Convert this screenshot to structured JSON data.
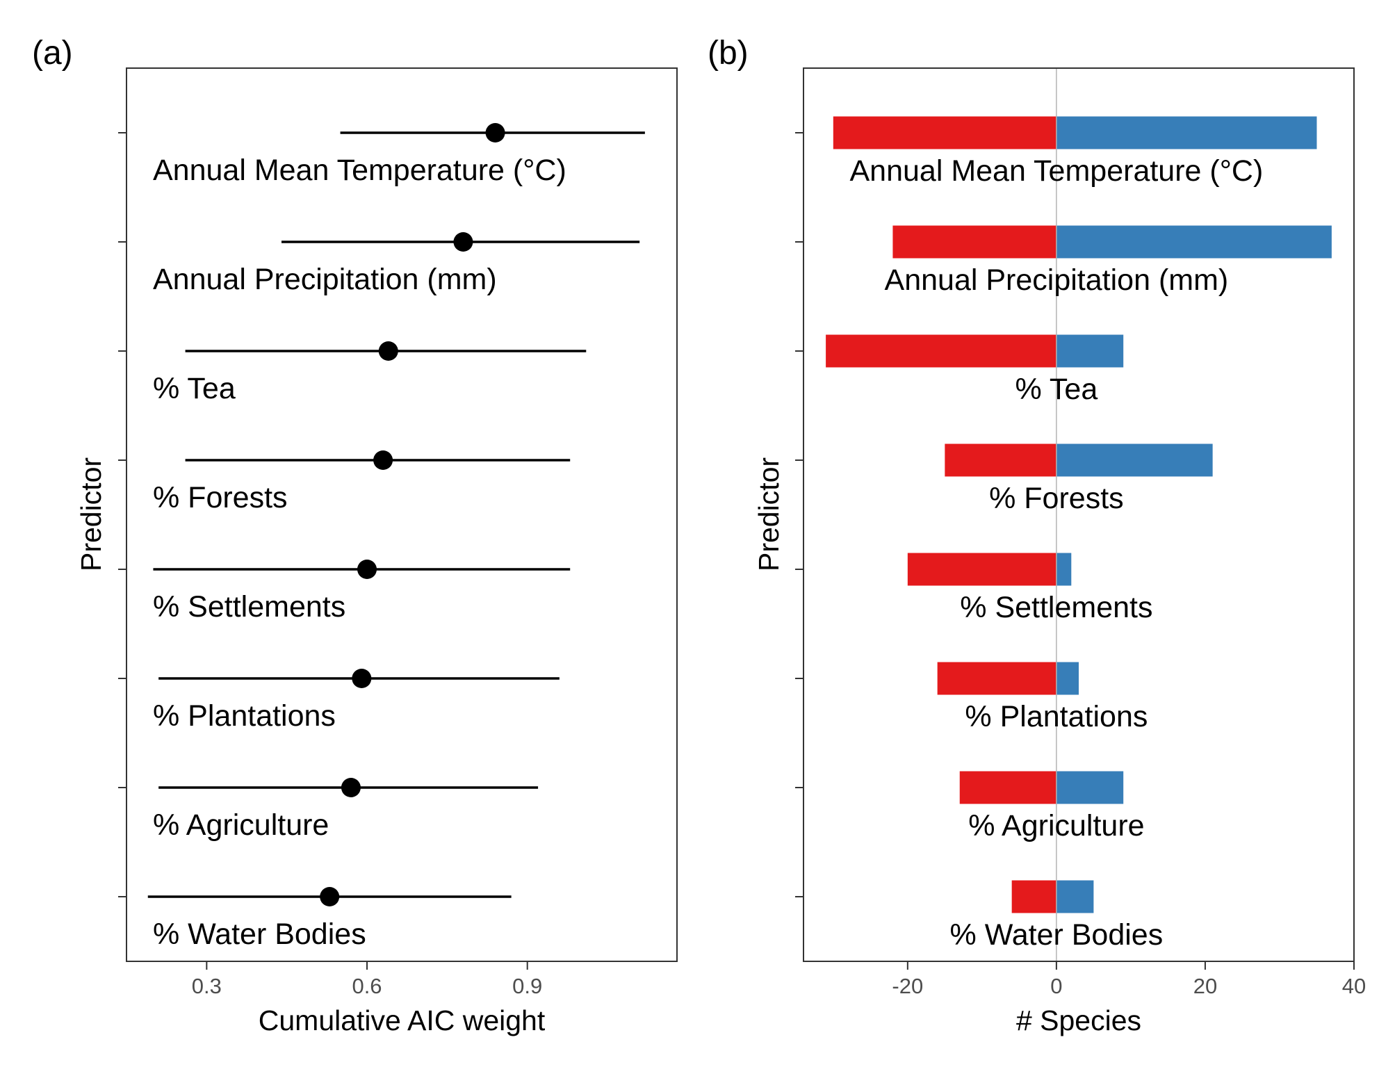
{
  "chart_data": [
    {
      "panel_label": "(a)",
      "type": "scatter",
      "subtype": "dot-and-whisker",
      "xlabel": "Cumulative AIC weight",
      "ylabel": "Predictor",
      "xlim": [
        0.15,
        1.18
      ],
      "xticks": [
        0.3,
        0.6,
        0.9
      ],
      "xtick_labels": [
        "0.3",
        "0.6",
        "0.9"
      ],
      "grid": false,
      "categories": [
        "Annual Mean Temperature (°C)",
        "Annual Precipitation (mm)",
        "% Tea",
        "% Forests",
        "% Settlements",
        "% Plantations",
        "% Agriculture",
        "% Water Bodies"
      ],
      "values": [
        0.84,
        0.78,
        0.64,
        0.63,
        0.6,
        0.59,
        0.57,
        0.53
      ],
      "lower": [
        0.55,
        0.44,
        0.26,
        0.26,
        0.2,
        0.21,
        0.21,
        0.19
      ],
      "upper": [
        1.12,
        1.11,
        1.01,
        0.98,
        0.98,
        0.96,
        0.92,
        0.87
      ]
    },
    {
      "panel_label": "(b)",
      "type": "bar",
      "orientation": "horizontal",
      "stacked": "diverging",
      "xlabel": "# Species",
      "ylabel": "Predictor",
      "xlim": [
        -34,
        40
      ],
      "xticks": [
        -20,
        0,
        20,
        40
      ],
      "xtick_labels": [
        "-20",
        "0",
        "20",
        "40"
      ],
      "grid": false,
      "categories": [
        "Annual Mean Temperature (°C)",
        "Annual Precipitation (mm)",
        "% Tea",
        "% Forests",
        "% Settlements",
        "% Plantations",
        "% Agriculture",
        "% Water Bodies"
      ],
      "series": [
        {
          "color": "#E41A1C",
          "values": [
            -30,
            -22,
            -31,
            -15,
            -20,
            -16,
            -13,
            -6
          ]
        },
        {
          "color": "#377EB8",
          "values": [
            35,
            37,
            9,
            21,
            2,
            3,
            9,
            5
          ]
        }
      ]
    }
  ]
}
